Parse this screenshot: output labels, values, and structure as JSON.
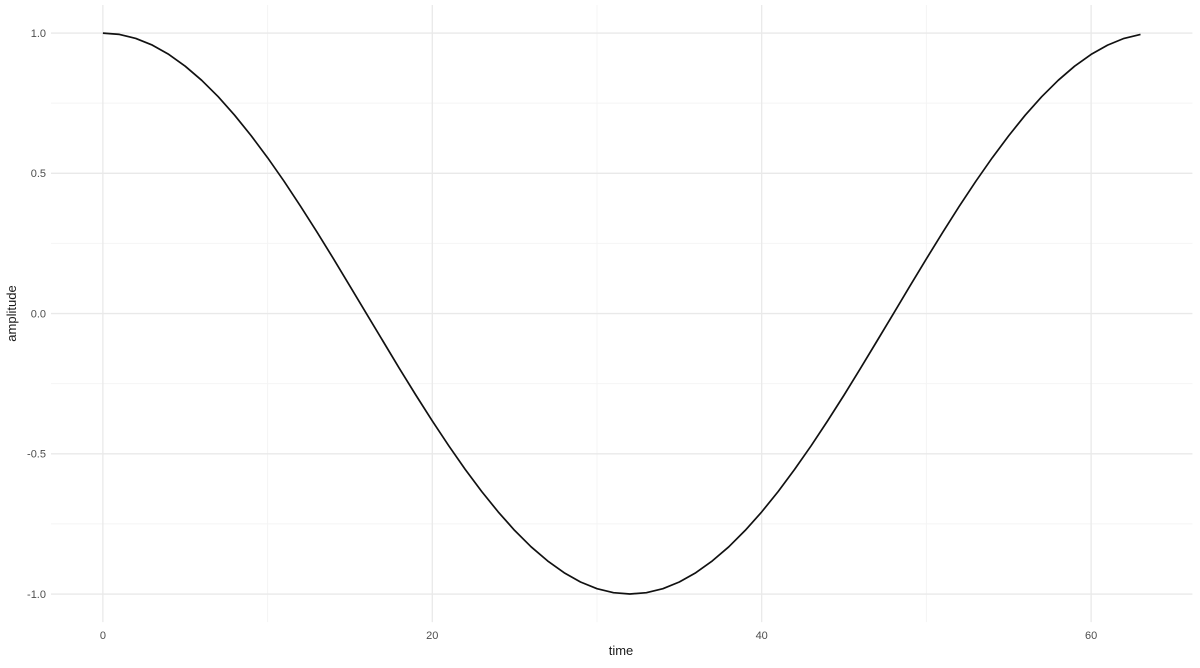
{
  "chart_data": {
    "type": "line",
    "title": "",
    "xlabel": "time",
    "ylabel": "amplitude",
    "x": [
      0,
      1,
      2,
      3,
      4,
      5,
      6,
      7,
      8,
      9,
      10,
      11,
      12,
      13,
      14,
      15,
      16,
      17,
      18,
      19,
      20,
      21,
      22,
      23,
      24,
      25,
      26,
      27,
      28,
      29,
      30,
      31,
      32,
      33,
      34,
      35,
      36,
      37,
      38,
      39,
      40,
      41,
      42,
      43,
      44,
      45,
      46,
      47,
      48,
      49,
      50,
      51,
      52,
      53,
      54,
      55,
      56,
      57,
      58,
      59,
      60,
      61,
      62,
      63
    ],
    "series": [
      {
        "name": "amplitude",
        "values": [
          1.0,
          0.9952,
          0.9808,
          0.9569,
          0.9239,
          0.8819,
          0.8315,
          0.773,
          0.7071,
          0.6344,
          0.5556,
          0.4714,
          0.3827,
          0.2903,
          0.1951,
          0.098,
          0.0,
          -0.098,
          -0.1951,
          -0.2903,
          -0.3827,
          -0.4714,
          -0.5556,
          -0.6344,
          -0.7071,
          -0.773,
          -0.8315,
          -0.8819,
          -0.9239,
          -0.9569,
          -0.9808,
          -0.9952,
          -1.0,
          -0.9952,
          -0.9808,
          -0.9569,
          -0.9239,
          -0.8819,
          -0.8315,
          -0.773,
          -0.7071,
          -0.6344,
          -0.5556,
          -0.4714,
          -0.3827,
          -0.2903,
          -0.1951,
          -0.098,
          0.0,
          0.098,
          0.1951,
          0.2903,
          0.3827,
          0.4714,
          0.5556,
          0.6344,
          0.7071,
          0.773,
          0.8315,
          0.8819,
          0.9239,
          0.9569,
          0.9808,
          0.9952
        ]
      }
    ],
    "xlim": [
      -3.15,
      66.15
    ],
    "ylim": [
      -1.1,
      1.1
    ],
    "x_major_ticks": [
      0,
      20,
      40,
      60
    ],
    "x_tick_labels": [
      "0",
      "20",
      "40",
      "60"
    ],
    "x_minor_ticks": [
      10,
      30,
      50
    ],
    "y_major_ticks": [
      1.0,
      0.5,
      0.0,
      -0.5,
      -1.0
    ],
    "y_tick_labels": [
      "1.0",
      "0.5",
      "0.0",
      "-0.5",
      "-1.0"
    ],
    "y_minor_ticks": [
      0.75,
      0.25,
      -0.25,
      -0.75
    ],
    "grid": true,
    "legend": "none",
    "colors": {
      "line": "#111111",
      "grid_major": "#e9e9e9",
      "grid_minor": "#f4f4f4",
      "tick_text": "#4d4d4d",
      "axis_title_text": "#1a1a1a",
      "background": "#ffffff"
    }
  }
}
